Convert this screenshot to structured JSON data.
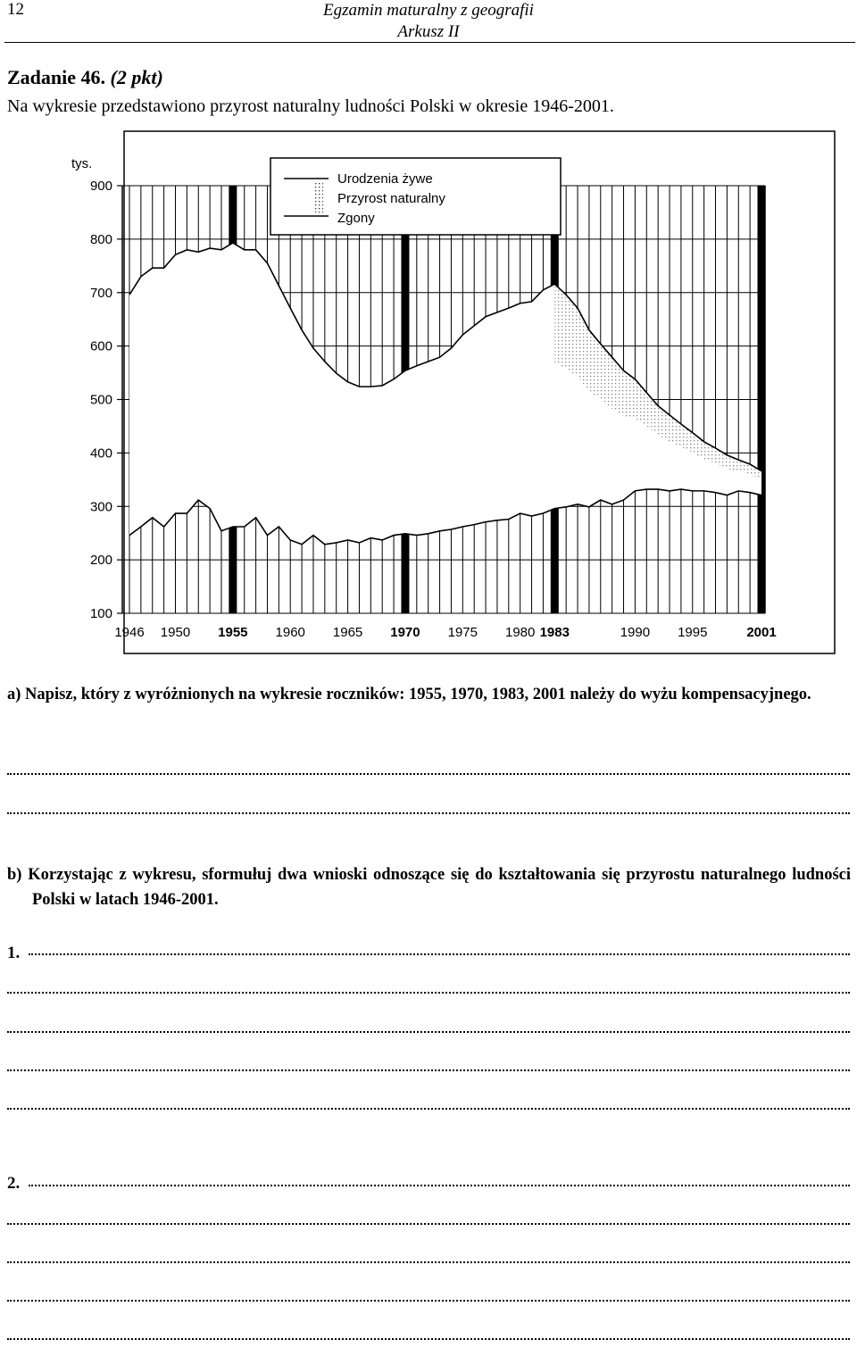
{
  "header": {
    "page_number": "12",
    "exam": "Egzamin maturalny z geografii",
    "sheet": "Arkusz II"
  },
  "task": {
    "title": "Zadanie 46.",
    "points": "(2 pkt)",
    "intro": "Na wykresie przedstawiono przyrost naturalny ludności Polski w okresie 1946-2001."
  },
  "chart": {
    "type": "line",
    "y_label": "tys.",
    "x": [
      1946,
      1947,
      1948,
      1949,
      1950,
      1951,
      1952,
      1953,
      1954,
      1955,
      1956,
      1957,
      1958,
      1959,
      1960,
      1961,
      1962,
      1963,
      1964,
      1965,
      1966,
      1967,
      1968,
      1969,
      1970,
      1971,
      1972,
      1973,
      1974,
      1975,
      1976,
      1977,
      1978,
      1979,
      1980,
      1981,
      1982,
      1983,
      1984,
      1985,
      1986,
      1987,
      1988,
      1989,
      1990,
      1991,
      1992,
      1993,
      1994,
      1995,
      1996,
      1997,
      1998,
      1999,
      2000,
      2001
    ],
    "series": [
      {
        "name": "Urodzenia żywe",
        "color": "#000000",
        "values": [
          696,
          730,
          746,
          746,
          771,
          780,
          776,
          783,
          780,
          793,
          780,
          780,
          755,
          713,
          671,
          630,
          596,
          571,
          549,
          533,
          524,
          524,
          526,
          538,
          554,
          563,
          571,
          579,
          596,
          621,
          638,
          655,
          663,
          671,
          680,
          683,
          705,
          716,
          696,
          671,
          630,
          604,
          579,
          554,
          538,
          513,
          488,
          471,
          454,
          438,
          421,
          409,
          396,
          387,
          379,
          366
        ]
      },
      {
        "name": "Zgony",
        "color": "#000000",
        "values": [
          246,
          262,
          279,
          262,
          287,
          287,
          312,
          296,
          254,
          262,
          262,
          279,
          246,
          262,
          237,
          229,
          246,
          229,
          232,
          237,
          232,
          241,
          237,
          246,
          249,
          246,
          249,
          254,
          257,
          262,
          266,
          271,
          274,
          276,
          287,
          282,
          287,
          296,
          299,
          304,
          299,
          312,
          304,
          312,
          329,
          332,
          332,
          329,
          332,
          329,
          329,
          326,
          321,
          329,
          326,
          321
        ]
      }
    ],
    "increase_label": "Przyrost naturalny",
    "xlim": [
      1946,
      2001
    ],
    "ylim": [
      100,
      900
    ],
    "xticks": [
      1946,
      1950,
      1955,
      1960,
      1965,
      1970,
      1975,
      1980,
      1983,
      1990,
      1995,
      2001
    ],
    "yticks": [
      100,
      200,
      300,
      400,
      500,
      600,
      700,
      800,
      900
    ],
    "highlight_years": [
      1955,
      1970,
      1983,
      2001
    ],
    "grid": true
  },
  "questions": [
    {
      "label": "a)",
      "text": "Napisz, który z wyróżnionych na wykresie roczników: 1955, 1970, 1983, 2001 należy do wyżu kompensacyjnego."
    },
    {
      "label": "b)",
      "text": "Korzystając z wykresu, sformułuj dwa wnioski odnoszące się do kształtowania się przyrostu naturalnego ludności Polski w latach 1946-2001."
    }
  ],
  "answers": [
    "1.",
    "2."
  ]
}
